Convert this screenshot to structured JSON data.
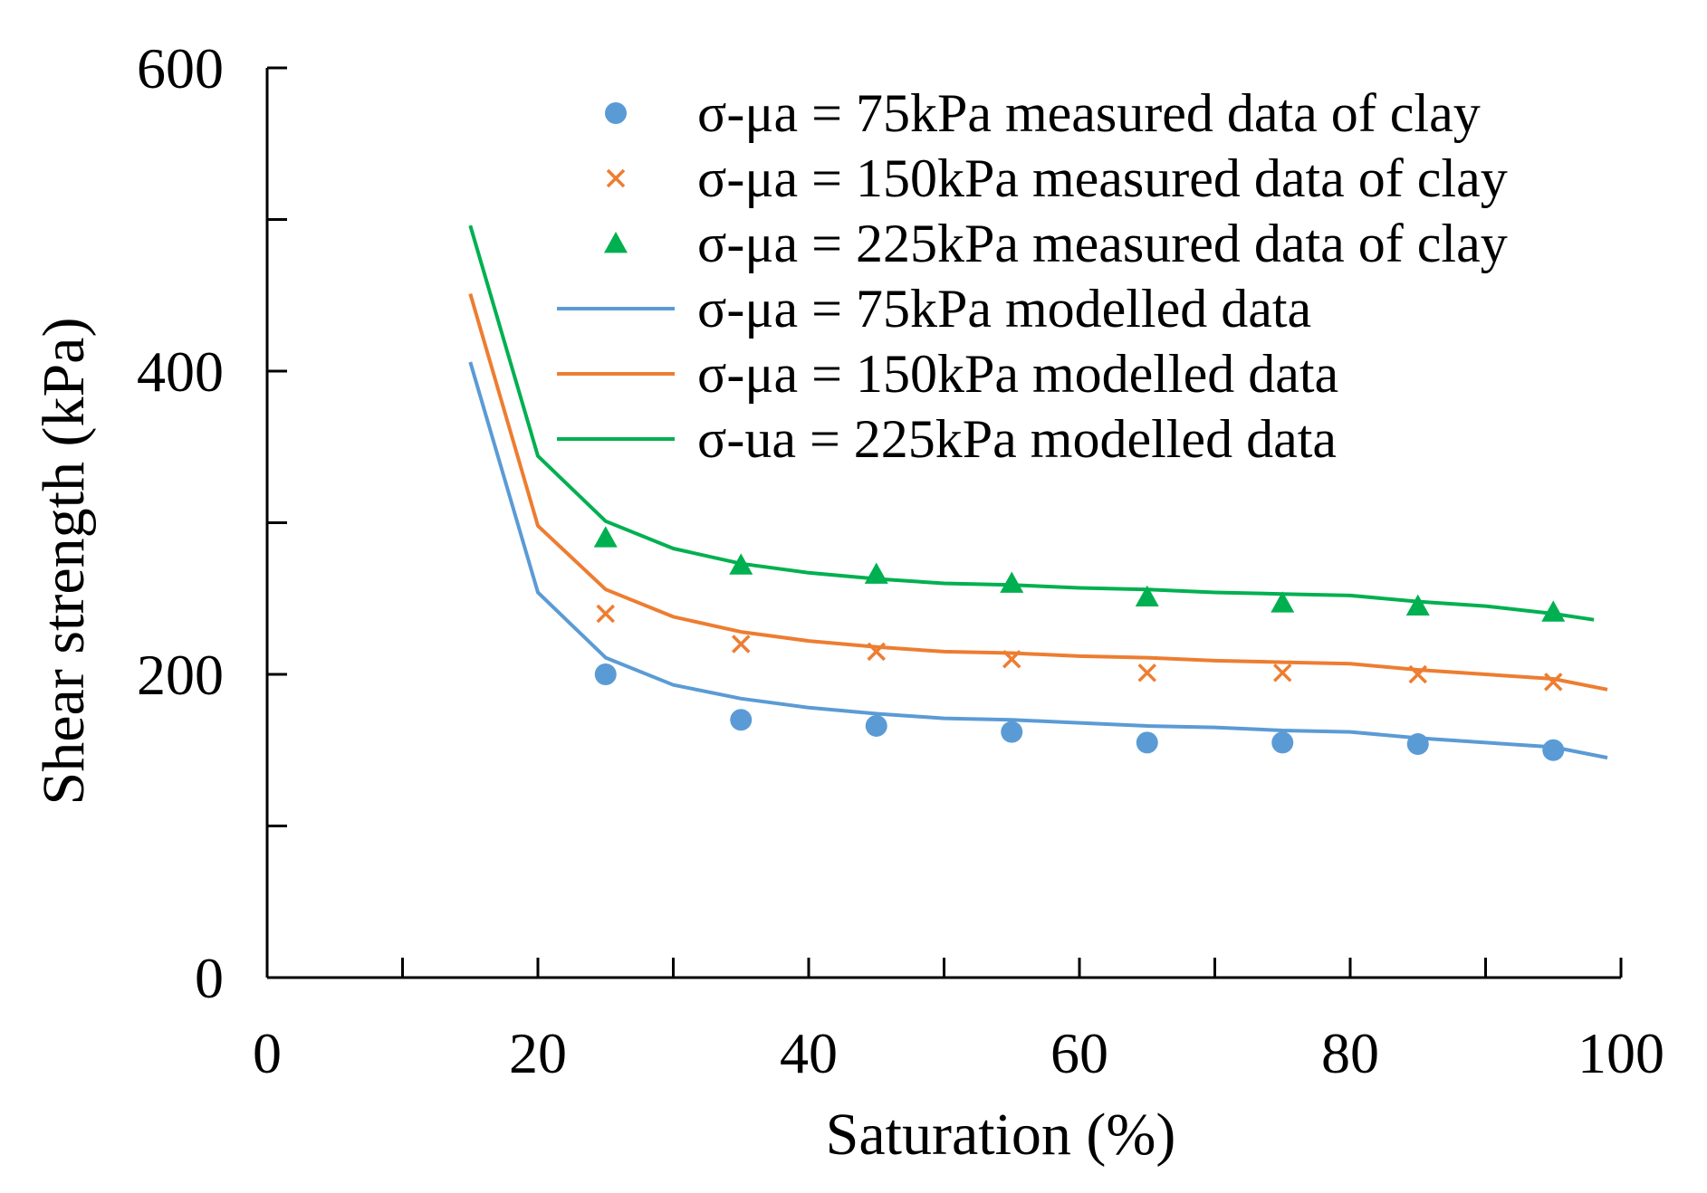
{
  "chart_data": {
    "type": "scatter",
    "xlabel": "Saturation (%)",
    "ylabel": "Shear strength (kPa)",
    "xlim": [
      0,
      100
    ],
    "ylim": [
      0,
      600
    ],
    "x_ticks": [
      0,
      20,
      40,
      60,
      80,
      100
    ],
    "x_minor_ticks": [
      10,
      30,
      50,
      70,
      90
    ],
    "y_ticks": [
      0,
      200,
      400,
      600
    ],
    "y_minor_ticks": [
      100,
      300,
      500
    ],
    "grid": false,
    "legend_position": "top-right",
    "measured_series": [
      {
        "name": "σ-μa = 75kPa measured data of clay",
        "marker": "circle",
        "color": "#5B9BD5",
        "x": [
          25,
          35,
          45,
          55,
          65,
          75,
          85,
          95
        ],
        "y": [
          200,
          170,
          166,
          162,
          155,
          155,
          154,
          150
        ]
      },
      {
        "name": "σ-μa = 150kPa measured data of clay",
        "marker": "cross",
        "color": "#ED7D31",
        "x": [
          25,
          35,
          45,
          55,
          65,
          75,
          85,
          95
        ],
        "y": [
          240,
          220,
          215,
          210,
          201,
          201,
          200,
          195
        ]
      },
      {
        "name": "σ-μa = 225kPa measured data of clay",
        "marker": "triangle",
        "color": "#00B050",
        "x": [
          25,
          35,
          45,
          55,
          65,
          75,
          85,
          95
        ],
        "y": [
          290,
          272,
          266,
          260,
          251,
          247,
          245,
          241
        ]
      }
    ],
    "modelled_series": [
      {
        "name": "σ-μa = 75kPa modelled data",
        "color": "#5B9BD5",
        "x": [
          15,
          20,
          25,
          30,
          35,
          40,
          45,
          50,
          55,
          60,
          65,
          70,
          75,
          80,
          85,
          90,
          95,
          99
        ],
        "y": [
          406,
          254,
          211,
          193,
          184,
          178,
          174,
          171,
          170,
          168,
          166,
          165,
          163,
          162,
          158,
          155,
          152,
          145
        ]
      },
      {
        "name": "σ-μa = 150kPa modelled data",
        "color": "#ED7D31",
        "x": [
          15,
          20,
          25,
          30,
          35,
          40,
          45,
          50,
          55,
          60,
          65,
          70,
          75,
          80,
          85,
          90,
          95,
          99
        ],
        "y": [
          451,
          298,
          256,
          238,
          228,
          222,
          218,
          215,
          214,
          212,
          211,
          209,
          208,
          207,
          203,
          200,
          197,
          190
        ]
      },
      {
        "name": "σ-ua = 225kPa modelled data",
        "color": "#00B050",
        "x": [
          15,
          20,
          25,
          30,
          35,
          40,
          45,
          50,
          55,
          60,
          65,
          70,
          75,
          80,
          85,
          90,
          95,
          98
        ],
        "y": [
          496,
          344,
          301,
          283,
          273,
          267,
          263,
          260,
          259,
          257,
          256,
          254,
          253,
          252,
          248,
          245,
          240,
          236
        ]
      }
    ]
  }
}
